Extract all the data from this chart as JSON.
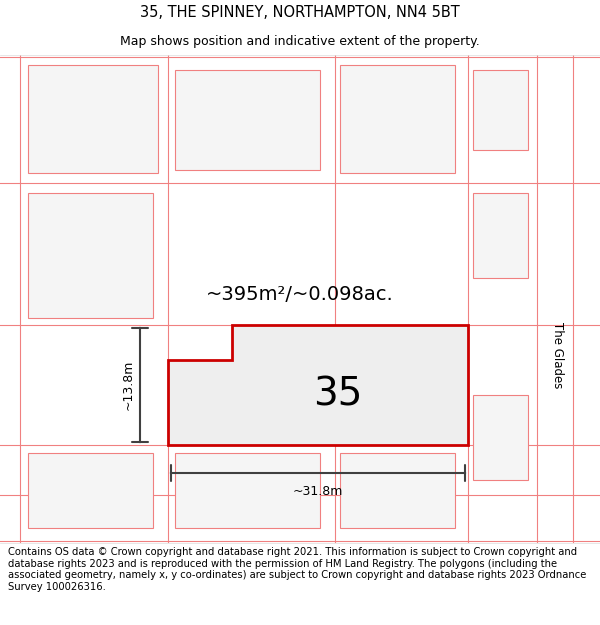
{
  "title": "35, THE SPINNEY, NORTHAMPTON, NN4 5BT",
  "subtitle": "Map shows position and indicative extent of the property.",
  "footer": "Contains OS data © Crown copyright and database right 2021. This information is subject to Crown copyright and database rights 2023 and is reproduced with the permission of HM Land Registry. The polygons (including the associated geometry, namely x, y co-ordinates) are subject to Crown copyright and database rights 2023 Ordnance Survey 100026316.",
  "area_label": "~395m²/~0.098ac.",
  "width_label": "~31.8m",
  "height_label": "~13.8m",
  "number_label": "35",
  "road_label": "The Glades",
  "bg_color": "#ffffff",
  "plot_fill": "#eeeeee",
  "plot_border": "#cc0000",
  "neighbor_fill": "#f5f5f5",
  "neighbor_border": "#f08080",
  "dim_line_color": "#404040",
  "title_fontsize": 10.5,
  "subtitle_fontsize": 9,
  "footer_fontsize": 7.2
}
